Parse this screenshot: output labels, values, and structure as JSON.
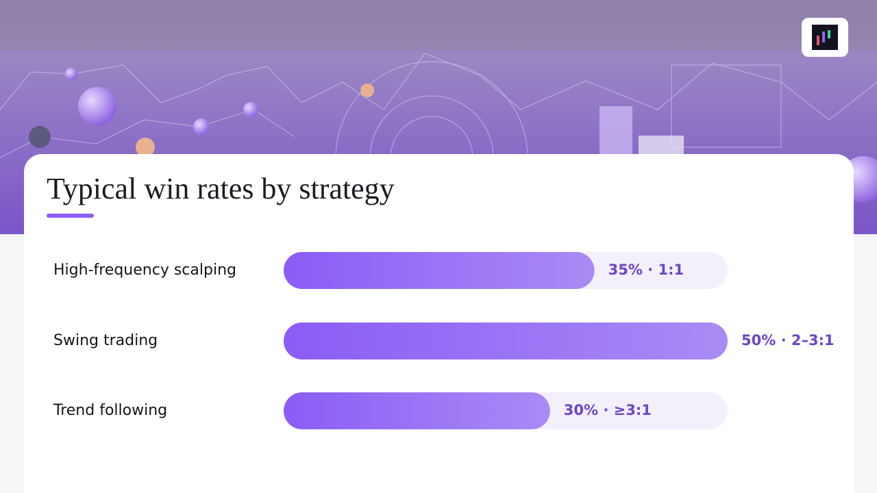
{
  "chart_data": {
    "type": "bar",
    "orientation": "horizontal",
    "title": "Typical win rates by strategy",
    "categories": [
      "High-frequency scalping",
      "Swing trading",
      "Trend following"
    ],
    "values": [
      35,
      50,
      30
    ],
    "value_labels": [
      "35% · 1:1",
      "50% · 2–3:1",
      "30% · ≥3:1"
    ],
    "xlim": [
      0,
      50
    ],
    "color": "#8b5cf6"
  }
}
